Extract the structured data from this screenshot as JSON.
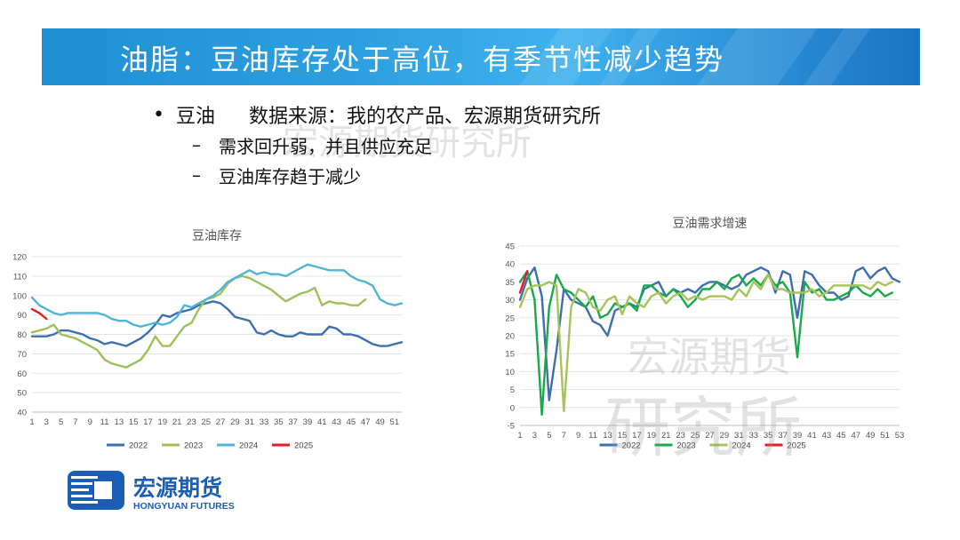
{
  "header": {
    "title": "油脂：豆油库存处于高位，有季节性减少趋势"
  },
  "bullets": {
    "main_label": "豆油",
    "source": "数据来源：我的农产品、宏源期货研究所",
    "sub1": "需求回升弱，并且供应充足",
    "sub2": "豆油库存趋于减少"
  },
  "watermarks": {
    "top": "宏源期货研究所",
    "mid": "宏源期货",
    "big": "研究所"
  },
  "logo": {
    "cn": "宏源期货",
    "en": "HONGYUAN FUTURES",
    "color": "#1a5fb4"
  },
  "chart_data": [
    {
      "type": "line",
      "title": "豆油库存",
      "x_ticks": [
        "1",
        "3",
        "5",
        "7",
        "9",
        "11",
        "13",
        "15",
        "17",
        "19",
        "21",
        "23",
        "25",
        "27",
        "29",
        "31",
        "33",
        "35",
        "37",
        "39",
        "41",
        "43",
        "45",
        "47",
        "49",
        "51"
      ],
      "xlim": [
        1,
        52
      ],
      "ylim": [
        40,
        120
      ],
      "yticks": [
        40,
        50,
        60,
        70,
        80,
        90,
        100,
        110,
        120
      ],
      "grid": true,
      "legend": "bottom",
      "series": [
        {
          "name": "2022",
          "color": "#3d6fb0",
          "x": [
            1,
            2,
            3,
            4,
            5,
            6,
            7,
            8,
            9,
            10,
            11,
            12,
            13,
            14,
            15,
            16,
            17,
            18,
            19,
            20,
            21,
            22,
            23,
            24,
            25,
            26,
            27,
            28,
            29,
            30,
            31,
            32,
            33,
            34,
            35,
            36,
            37,
            38,
            39,
            40,
            41,
            42,
            43,
            44,
            45,
            46,
            47,
            48,
            49,
            50,
            51,
            52
          ],
          "values": [
            79,
            79,
            79,
            80,
            82,
            82,
            81,
            80,
            78,
            77,
            75,
            76,
            75,
            74,
            76,
            78,
            81,
            85,
            90,
            89,
            91,
            92,
            93,
            95,
            96,
            97,
            96,
            93,
            89,
            88,
            87,
            81,
            80,
            82,
            80,
            79,
            79,
            81,
            80,
            80,
            80,
            84,
            83,
            80,
            80,
            79,
            77,
            75,
            74,
            74,
            75,
            76
          ]
        },
        {
          "name": "2023",
          "color": "#9dc05a",
          "x": [
            1,
            2,
            3,
            4,
            5,
            6,
            7,
            8,
            9,
            10,
            11,
            12,
            13,
            14,
            15,
            16,
            17,
            18,
            19,
            20,
            21,
            22,
            23,
            24,
            25,
            26,
            27,
            28,
            29,
            30,
            31,
            32,
            33,
            34,
            35,
            36,
            37,
            38,
            39,
            40,
            41,
            42,
            43,
            44,
            45,
            46,
            47
          ],
          "values": [
            81,
            82,
            83,
            85,
            80,
            79,
            78,
            76,
            74,
            72,
            67,
            65,
            64,
            63,
            65,
            67,
            72,
            79,
            74,
            74,
            79,
            84,
            86,
            93,
            98,
            99,
            101,
            106,
            109,
            110,
            109,
            107,
            105,
            103,
            100,
            97,
            99,
            101,
            102,
            104,
            95,
            97,
            96,
            96,
            95,
            95,
            98
          ]
        },
        {
          "name": "2024",
          "color": "#4fb4d8",
          "x": [
            1,
            2,
            3,
            4,
            5,
            6,
            7,
            8,
            9,
            10,
            11,
            12,
            13,
            14,
            15,
            16,
            17,
            18,
            19,
            20,
            21,
            22,
            23,
            24,
            25,
            26,
            27,
            28,
            29,
            30,
            31,
            32,
            33,
            34,
            35,
            36,
            37,
            38,
            39,
            40,
            41,
            42,
            43,
            44,
            45,
            46,
            47,
            48,
            49,
            50,
            51,
            52
          ],
          "values": [
            99,
            95,
            93,
            91,
            90,
            91,
            91,
            91,
            91,
            91,
            90,
            88,
            87,
            87,
            85,
            84,
            85,
            86,
            85,
            86,
            89,
            95,
            94,
            96,
            98,
            100,
            103,
            107,
            109,
            111,
            113,
            111,
            112,
            111,
            111,
            110,
            112,
            114,
            116,
            115,
            114,
            113,
            113,
            113,
            110,
            108,
            107,
            105,
            98,
            96,
            95,
            96
          ]
        },
        {
          "name": "2025",
          "color": "#e51c23",
          "x": [
            1,
            2,
            3
          ],
          "values": [
            93,
            91,
            88
          ]
        }
      ]
    },
    {
      "type": "line",
      "title": "豆油需求增速",
      "x_ticks": [
        "1",
        "3",
        "5",
        "7",
        "9",
        "11",
        "13",
        "15",
        "17",
        "19",
        "21",
        "23",
        "25",
        "27",
        "29",
        "31",
        "33",
        "35",
        "37",
        "39",
        "41",
        "43",
        "45",
        "47",
        "49",
        "51",
        "53"
      ],
      "xlim": [
        1,
        53
      ],
      "ylim": [
        -5,
        45
      ],
      "yticks": [
        -5,
        0,
        5,
        10,
        15,
        20,
        25,
        30,
        35,
        40,
        45
      ],
      "grid": true,
      "legend": "bottom",
      "series": [
        {
          "name": "2022",
          "color": "#3d6fb0",
          "x": [
            1,
            2,
            3,
            4,
            5,
            6,
            7,
            8,
            9,
            10,
            11,
            12,
            13,
            14,
            15,
            16,
            17,
            18,
            19,
            20,
            21,
            22,
            23,
            24,
            25,
            26,
            27,
            28,
            29,
            30,
            31,
            32,
            33,
            34,
            35,
            36,
            37,
            38,
            39,
            40,
            41,
            42,
            43,
            44,
            45,
            46,
            47,
            48,
            49,
            50,
            51,
            52,
            53
          ],
          "values": [
            30,
            36,
            39,
            31,
            2,
            16,
            33,
            30,
            29,
            28,
            24,
            23,
            20,
            27,
            28,
            29,
            28,
            33,
            34,
            35,
            31,
            33,
            32,
            33,
            32,
            34,
            35,
            35,
            34,
            33,
            34,
            37,
            38,
            39,
            38,
            32,
            38,
            37,
            25,
            38,
            37,
            34,
            32,
            32,
            30,
            31,
            38,
            39,
            36,
            38,
            39,
            36,
            35
          ]
        },
        {
          "name": "2023",
          "color": "#1aa84a",
          "x": [
            1,
            2,
            3,
            4,
            5,
            6,
            7,
            8,
            9,
            10,
            11,
            12,
            13,
            14,
            15,
            16,
            17,
            18,
            19,
            20,
            21,
            22,
            23,
            24,
            25,
            26,
            27,
            28,
            29,
            30,
            31,
            32,
            33,
            34,
            35,
            36,
            37,
            38,
            39,
            40,
            41,
            42,
            43,
            44,
            45,
            46,
            47,
            48,
            49,
            50,
            51,
            52
          ],
          "values": [
            35,
            38,
            30,
            -2,
            28,
            37,
            33,
            32,
            30,
            28,
            31,
            25,
            26,
            29,
            28,
            29,
            27,
            34,
            34,
            32,
            31,
            33,
            31,
            28,
            30,
            33,
            33,
            35,
            33,
            36,
            37,
            34,
            36,
            34,
            37,
            34,
            35,
            32,
            14,
            35,
            32,
            33,
            30,
            30,
            31,
            32,
            34,
            32,
            31,
            33,
            31,
            32
          ]
        },
        {
          "name": "2024",
          "color": "#a6c45a",
          "x": [
            1,
            2,
            3,
            4,
            5,
            6,
            7,
            8,
            9,
            10,
            11,
            12,
            13,
            14,
            15,
            16,
            17,
            18,
            19,
            20,
            21,
            22,
            23,
            24,
            25,
            26,
            27,
            28,
            29,
            30,
            31,
            32,
            33,
            34,
            35,
            36,
            37,
            38,
            39,
            40,
            41,
            42,
            43,
            44,
            45,
            46,
            47,
            48,
            49,
            50,
            51,
            52
          ],
          "values": [
            28,
            33,
            34,
            34,
            35,
            34,
            -1,
            28,
            33,
            32,
            28,
            27,
            30,
            31,
            26,
            31,
            29,
            28,
            31,
            32,
            29,
            31,
            32,
            30,
            31,
            30,
            31,
            31,
            31,
            30,
            33,
            31,
            35,
            33,
            37,
            33,
            33,
            32,
            32,
            32,
            33,
            31,
            32,
            34,
            34,
            34,
            34,
            34,
            33,
            35,
            34,
            35
          ]
        },
        {
          "name": "2025",
          "color": "#e51c23",
          "x": [
            1,
            2
          ],
          "values": [
            32,
            38
          ]
        }
      ]
    }
  ]
}
